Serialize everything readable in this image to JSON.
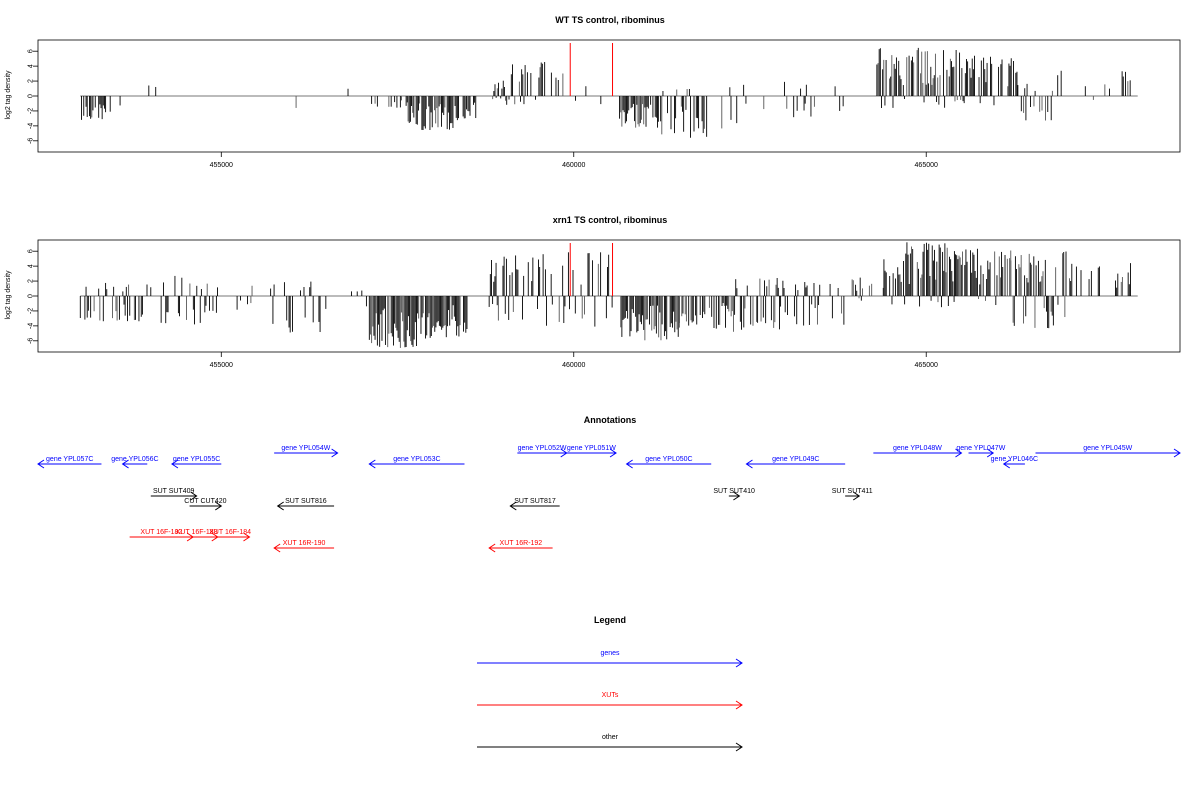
{
  "chart_data": [
    {
      "type": "bar",
      "title": "WT TS control, ribominus",
      "ylabel": "log2 tag density",
      "xlim": [
        452400,
        468600
      ],
      "ylim": [
        -7.5,
        7.5
      ],
      "x_ticks": [
        455000,
        460000,
        465000
      ],
      "x_tick_labels": [
        "455000",
        "460000",
        "465000"
      ],
      "y_ticks": [
        -6,
        -4,
        -2,
        0,
        2,
        4,
        6
      ],
      "y_tick_labels": [
        "-6",
        "-4",
        "-2",
        "0",
        "2",
        "4",
        "6"
      ],
      "marker_lines": [
        {
          "x": 459950,
          "color": "#ff0000"
        },
        {
          "x": 460550,
          "color": "#ff0000"
        }
      ],
      "series": [
        {
          "color": "#000000",
          "segments": [
            {
              "start": 453000,
              "end": 453450,
              "min": -3.2,
              "max": 0,
              "density": 0.55
            },
            {
              "start": 453450,
              "end": 454300,
              "min": -1.6,
              "max": 1.7,
              "density": 0.06
            },
            {
              "start": 455800,
              "end": 456500,
              "min": -2.6,
              "max": 2.1,
              "density": 0.08
            },
            {
              "start": 456700,
              "end": 457000,
              "min": -0.5,
              "max": 1.4,
              "density": 0.05
            },
            {
              "start": 457100,
              "end": 457650,
              "min": -1.7,
              "max": 0,
              "density": 0.3
            },
            {
              "start": 457650,
              "end": 458300,
              "min": -4.6,
              "max": 0,
              "density": 0.85
            },
            {
              "start": 458300,
              "end": 458650,
              "min": -3.3,
              "max": 0,
              "density": 0.55
            },
            {
              "start": 458850,
              "end": 459000,
              "min": -1.0,
              "max": 1.8,
              "density": 0.5
            },
            {
              "start": 459000,
              "end": 459600,
              "min": -1.3,
              "max": 4.6,
              "density": 0.7
            },
            {
              "start": 459650,
              "end": 460550,
              "min": -1.3,
              "max": 3.3,
              "density": 0.2
            },
            {
              "start": 460650,
              "end": 461200,
              "min": -4.5,
              "max": 0,
              "density": 0.8
            },
            {
              "start": 461200,
              "end": 461900,
              "min": -5.6,
              "max": 1.0,
              "density": 0.65
            },
            {
              "start": 462100,
              "end": 462500,
              "min": -4.5,
              "max": 2.5,
              "density": 0.25
            },
            {
              "start": 462500,
              "end": 463900,
              "min": -3.0,
              "max": 2.0,
              "density": 0.2
            },
            {
              "start": 464300,
              "end": 465000,
              "min": -1.8,
              "max": 6.8,
              "density": 0.8
            },
            {
              "start": 465000,
              "end": 465700,
              "min": -1.6,
              "max": 6.2,
              "density": 0.85
            },
            {
              "start": 465700,
              "end": 466300,
              "min": -1.3,
              "max": 5.3,
              "density": 0.55
            },
            {
              "start": 466300,
              "end": 466800,
              "min": -3.5,
              "max": 1.7,
              "density": 0.35
            },
            {
              "start": 466800,
              "end": 468000,
              "min": -0.6,
              "max": 3.4,
              "density": 0.12
            }
          ]
        }
      ]
    },
    {
      "type": "bar",
      "title": "xrn1 TS control, ribominus",
      "ylabel": "log2 tag density",
      "xlim": [
        452400,
        468600
      ],
      "ylim": [
        -7.5,
        7.5
      ],
      "x_ticks": [
        455000,
        460000,
        465000
      ],
      "x_tick_labels": [
        "455000",
        "460000",
        "465000"
      ],
      "y_ticks": [
        -6,
        -4,
        -2,
        0,
        2,
        4,
        6
      ],
      "y_tick_labels": [
        "-6",
        "-4",
        "-2",
        "0",
        "2",
        "4",
        "6"
      ],
      "marker_lines": [
        {
          "x": 459950,
          "color": "#ff0000"
        },
        {
          "x": 460550,
          "color": "#ff0000"
        }
      ],
      "series": [
        {
          "color": "#000000",
          "segments": [
            {
              "start": 453000,
              "end": 454000,
              "min": -3.5,
              "max": 1.8,
              "density": 0.45
            },
            {
              "start": 454000,
              "end": 454800,
              "min": -3.8,
              "max": 2.9,
              "density": 0.4
            },
            {
              "start": 454800,
              "end": 455500,
              "min": -2.5,
              "max": 1.8,
              "density": 0.2
            },
            {
              "start": 455700,
              "end": 456500,
              "min": -5.6,
              "max": 2.0,
              "density": 0.35
            },
            {
              "start": 456700,
              "end": 457100,
              "min": -1.5,
              "max": 1.3,
              "density": 0.15
            },
            {
              "start": 457100,
              "end": 457800,
              "min": -7.0,
              "max": 0,
              "density": 0.9
            },
            {
              "start": 457800,
              "end": 458500,
              "min": -5.8,
              "max": 0,
              "density": 0.85
            },
            {
              "start": 458800,
              "end": 459500,
              "min": -3.5,
              "max": 5.5,
              "density": 0.65
            },
            {
              "start": 459500,
              "end": 460550,
              "min": -4.2,
              "max": 6.0,
              "density": 0.45
            },
            {
              "start": 460650,
              "end": 461500,
              "min": -6.0,
              "max": 0,
              "density": 0.8
            },
            {
              "start": 461500,
              "end": 462200,
              "min": -4.5,
              "max": 0,
              "density": 0.6
            },
            {
              "start": 462200,
              "end": 463000,
              "min": -4.8,
              "max": 2.5,
              "density": 0.55
            },
            {
              "start": 463000,
              "end": 463900,
              "min": -4.2,
              "max": 2.0,
              "density": 0.45
            },
            {
              "start": 463900,
              "end": 464400,
              "min": -0.8,
              "max": 2.6,
              "density": 0.3
            },
            {
              "start": 464400,
              "end": 465400,
              "min": -1.5,
              "max": 7.3,
              "density": 0.85
            },
            {
              "start": 465400,
              "end": 466200,
              "min": -1.4,
              "max": 6.5,
              "density": 0.8
            },
            {
              "start": 466200,
              "end": 467000,
              "min": -4.5,
              "max": 6.0,
              "density": 0.75
            },
            {
              "start": 467000,
              "end": 468000,
              "min": -1.0,
              "max": 4.8,
              "density": 0.3
            }
          ]
        }
      ]
    },
    {
      "type": "diagram",
      "title": "Annotations",
      "xlim": [
        452400,
        468600
      ],
      "colors": {
        "gene": "#0000ff",
        "xut": "#ff0000",
        "other": "#000000"
      },
      "features": [
        {
          "label": "gene YPL057C",
          "start": 452400,
          "end": 453300,
          "strand": "-",
          "kind": "gene",
          "row": 0
        },
        {
          "label": "gene YPL056C",
          "start": 453600,
          "end": 453950,
          "strand": "-",
          "kind": "gene",
          "row": 0
        },
        {
          "label": "gene YPL055C",
          "start": 454300,
          "end": 455000,
          "strand": "-",
          "kind": "gene",
          "row": 0
        },
        {
          "label": "gene YPL054W",
          "start": 455750,
          "end": 456650,
          "strand": "+",
          "kind": "gene",
          "row": -1
        },
        {
          "label": "gene YPL053C",
          "start": 457100,
          "end": 458450,
          "strand": "-",
          "kind": "gene",
          "row": 0
        },
        {
          "label": "gene YPL052W",
          "start": 459200,
          "end": 459900,
          "strand": "+",
          "kind": "gene",
          "row": -1
        },
        {
          "label": "gene YPL051W",
          "start": 459900,
          "end": 460600,
          "strand": "+",
          "kind": "gene",
          "row": -1
        },
        {
          "label": "gene YPL050C",
          "start": 460750,
          "end": 461950,
          "strand": "-",
          "kind": "gene",
          "row": 0
        },
        {
          "label": "gene YPL049C",
          "start": 462450,
          "end": 463850,
          "strand": "-",
          "kind": "gene",
          "row": 0
        },
        {
          "label": "gene YPL048W",
          "start": 464250,
          "end": 465500,
          "strand": "+",
          "kind": "gene",
          "row": -1
        },
        {
          "label": "gene YPL047W",
          "start": 465600,
          "end": 465950,
          "strand": "+",
          "kind": "gene",
          "row": -1
        },
        {
          "label": "gene YPL046C",
          "start": 466100,
          "end": 466400,
          "strand": "-",
          "kind": "gene",
          "row": 0
        },
        {
          "label": "gene YPL045W",
          "start": 466550,
          "end": 468800,
          "strand": "+",
          "kind": "gene",
          "row": -1
        },
        {
          "label": "SUT SUT409",
          "start": 454000,
          "end": 454650,
          "strand": "+",
          "kind": "other",
          "row": 1
        },
        {
          "label": "CUT CUT420",
          "start": 454550,
          "end": 455000,
          "strand": "+",
          "kind": "other",
          "row": 2
        },
        {
          "label": "SUT SUT816",
          "start": 455800,
          "end": 456600,
          "strand": "-",
          "kind": "other",
          "row": 2
        },
        {
          "label": "SUT SUT817",
          "start": 459100,
          "end": 459800,
          "strand": "-",
          "kind": "other",
          "row": 2
        },
        {
          "label": "SUT SUT410",
          "start": 462200,
          "end": 462350,
          "strand": "+",
          "kind": "other",
          "row": 1
        },
        {
          "label": "SUT SUT411",
          "start": 463850,
          "end": 464050,
          "strand": "+",
          "kind": "other",
          "row": 1
        },
        {
          "label": "XUT 16F-182",
          "start": 453700,
          "end": 454600,
          "strand": "+",
          "kind": "xut",
          "row": 3
        },
        {
          "label": "XUT 16F-183",
          "start": 454350,
          "end": 454950,
          "strand": "+",
          "kind": "xut",
          "row": 3
        },
        {
          "label": "XUT 16F-184",
          "start": 454850,
          "end": 455400,
          "strand": "+",
          "kind": "xut",
          "row": 3
        },
        {
          "label": "XUT 16R-190",
          "start": 455750,
          "end": 456600,
          "strand": "-",
          "kind": "xut",
          "row": 4
        },
        {
          "label": "XUT 16R-192",
          "start": 458800,
          "end": 459700,
          "strand": "-",
          "kind": "xut",
          "row": 4
        }
      ]
    }
  ],
  "legend": {
    "title": "Legend",
    "items": [
      {
        "label": "genes",
        "color": "#0000ff"
      },
      {
        "label": "XUTs",
        "color": "#ff0000"
      },
      {
        "label": "other",
        "color": "#000000"
      }
    ]
  }
}
